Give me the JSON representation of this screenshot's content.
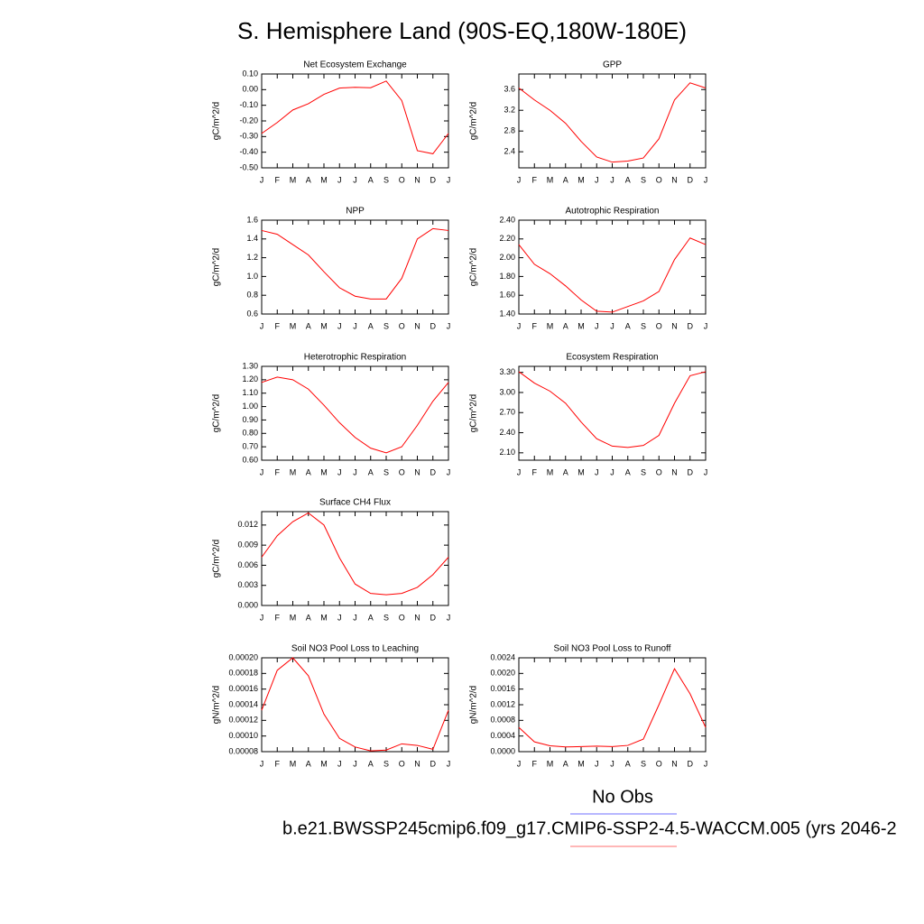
{
  "title": "S. Hemisphere Land (90S-EQ,180W-180E)",
  "legend": [
    {
      "name": "No Obs",
      "color": "#8c8cff"
    },
    {
      "name": "b.e21.BWSSP245cmip6.f09_g17.CMIP6-SSP2-4.5-WACCM.005 (yrs 2046-2",
      "color": "#ff8c8c"
    }
  ],
  "chart_data": [
    {
      "type": "line",
      "title": "Net Ecosystem Exchange",
      "ylabel": "gC/m^2/d",
      "color": "#ff0000",
      "categories": [
        "J",
        "F",
        "M",
        "A",
        "M",
        "J",
        "J",
        "A",
        "S",
        "O",
        "N",
        "D",
        "J"
      ],
      "values": [
        -0.28,
        -0.21,
        -0.13,
        -0.09,
        -0.03,
        0.01,
        0.015,
        0.012,
        0.055,
        -0.07,
        -0.39,
        -0.41,
        -0.28
      ],
      "ylim": [
        -0.5,
        0.1
      ],
      "yticks": [
        {
          "value": 0.1,
          "label": "0.10"
        },
        {
          "value": 0,
          "label": "0.00"
        },
        {
          "value": -0.1,
          "label": "-0.10"
        },
        {
          "value": -0.2,
          "label": "-0.20"
        },
        {
          "value": -0.3,
          "label": "-0.30"
        },
        {
          "value": -0.4,
          "label": "-0.40"
        },
        {
          "value": -0.5,
          "label": "-0.50"
        }
      ]
    },
    {
      "type": "line",
      "title": "GPP",
      "ylabel": "gC/m^2/d",
      "color": "#ff0000",
      "categories": [
        "J",
        "F",
        "M",
        "A",
        "M",
        "J",
        "J",
        "A",
        "S",
        "O",
        "N",
        "D",
        "J"
      ],
      "values": [
        3.63,
        3.4,
        3.2,
        2.95,
        2.6,
        2.3,
        2.2,
        2.22,
        2.28,
        2.65,
        3.4,
        3.73,
        3.63
      ],
      "ylim": [
        2.09,
        3.9
      ],
      "yticks": [
        2.4,
        2.8,
        3.2,
        3.6
      ]
    },
    {
      "type": "line",
      "title": "NPP",
      "ylabel": "gC/m^2/d",
      "color": "#ff0000",
      "categories": [
        "J",
        "F",
        "M",
        "A",
        "M",
        "J",
        "J",
        "A",
        "S",
        "O",
        "N",
        "D",
        "J"
      ],
      "values": [
        1.49,
        1.45,
        1.34,
        1.23,
        1.05,
        0.88,
        0.79,
        0.76,
        0.76,
        0.98,
        1.4,
        1.51,
        1.49
      ],
      "ylim": [
        0.6,
        1.6
      ],
      "yticks": [
        0.6,
        0.8,
        {
          "value": 1,
          "label": "1.0"
        },
        1.2,
        1.4,
        1.6
      ]
    },
    {
      "type": "line",
      "title": "Autotrophic Respiration",
      "ylabel": "gC/m^2/d",
      "color": "#ff0000",
      "categories": [
        "J",
        "F",
        "M",
        "A",
        "M",
        "J",
        "J",
        "A",
        "S",
        "O",
        "N",
        "D",
        "J"
      ],
      "values": [
        2.14,
        1.93,
        1.83,
        1.7,
        1.55,
        1.43,
        1.42,
        1.48,
        1.54,
        1.64,
        1.98,
        2.21,
        2.14
      ],
      "ylim": [
        1.4,
        2.4
      ],
      "yticks": [
        {
          "value": 1.4,
          "label": "1.40"
        },
        {
          "value": 1.6,
          "label": "1.60"
        },
        {
          "value": 1.8,
          "label": "1.80"
        },
        {
          "value": 2,
          "label": "2.00"
        },
        {
          "value": 2.2,
          "label": "2.20"
        },
        {
          "value": 2.4,
          "label": "2.40"
        }
      ]
    },
    {
      "type": "line",
      "title": "Heterotrophic Respiration",
      "ylabel": "gC/m^2/d",
      "color": "#ff0000",
      "categories": [
        "J",
        "F",
        "M",
        "A",
        "M",
        "J",
        "J",
        "A",
        "S",
        "O",
        "N",
        "D",
        "J"
      ],
      "values": [
        1.18,
        1.22,
        1.2,
        1.13,
        1.01,
        0.88,
        0.77,
        0.69,
        0.655,
        0.7,
        0.86,
        1.04,
        1.18
      ],
      "ylim": [
        0.6,
        1.3
      ],
      "yticks": [
        {
          "value": 0.6,
          "label": "0.60"
        },
        {
          "value": 0.7,
          "label": "0.70"
        },
        {
          "value": 0.8,
          "label": "0.80"
        },
        {
          "value": 0.9,
          "label": "0.90"
        },
        {
          "value": 1,
          "label": "1.00"
        },
        {
          "value": 1.1,
          "label": "1.10"
        },
        {
          "value": 1.2,
          "label": "1.20"
        },
        {
          "value": 1.3,
          "label": "1.30"
        }
      ]
    },
    {
      "type": "line",
      "title": "Ecosystem Respiration",
      "ylabel": "gC/m^2/d",
      "color": "#ff0000",
      "categories": [
        "J",
        "F",
        "M",
        "A",
        "M",
        "J",
        "J",
        "A",
        "S",
        "O",
        "N",
        "D",
        "J"
      ],
      "values": [
        3.31,
        3.14,
        3.02,
        2.84,
        2.56,
        2.31,
        2.2,
        2.18,
        2.21,
        2.36,
        2.84,
        3.25,
        3.31
      ],
      "ylim": [
        1.99,
        3.39
      ],
      "yticks": [
        {
          "value": 2.1,
          "label": "2.10"
        },
        {
          "value": 2.4,
          "label": "2.40"
        },
        {
          "value": 2.7,
          "label": "2.70"
        },
        {
          "value": 3,
          "label": "3.00"
        },
        {
          "value": 3.3,
          "label": "3.30"
        }
      ]
    },
    {
      "type": "line",
      "title": "Surface CH4 Flux",
      "ylabel": "gC/m^2/d",
      "color": "#ff0000",
      "categories": [
        "J",
        "F",
        "M",
        "A",
        "M",
        "J",
        "J",
        "A",
        "S",
        "O",
        "N",
        "D",
        "J"
      ],
      "values": [
        0.0072,
        0.0104,
        0.0125,
        0.0138,
        0.012,
        0.0071,
        0.0032,
        0.0018,
        0.0016,
        0.0018,
        0.0027,
        0.0046,
        0.0072
      ],
      "ylim": [
        0,
        0.014
      ],
      "yticks": [
        {
          "value": 0,
          "label": "0.000"
        },
        0.003,
        0.006,
        0.009,
        0.012
      ]
    },
    {
      "type": "line",
      "title": "Soil NO3 Pool Loss to Leaching",
      "ylabel": "gN/m^2/d",
      "color": "#ff0000",
      "categories": [
        "J",
        "F",
        "M",
        "A",
        "M",
        "J",
        "J",
        "A",
        "S",
        "O",
        "N",
        "D",
        "J"
      ],
      "values": [
        0.000133,
        0.000184,
        0.0002,
        0.000177,
        0.000128,
        9.7e-05,
        8.6e-05,
        8.1e-05,
        8.2e-05,
        9e-05,
        8.8e-05,
        8.3e-05,
        0.000133
      ],
      "ylim": [
        8e-05,
        0.0002
      ],
      "yticks": [
        8e-05,
        {
          "value": 0.0001,
          "label": "0.00010"
        },
        0.00012,
        0.00014,
        0.00016,
        0.00018,
        {
          "value": 0.0002,
          "label": "0.00020"
        }
      ]
    },
    {
      "type": "line",
      "title": "Soil NO3 Pool Loss to Runoff",
      "ylabel": "gN/m^2/d",
      "color": "#ff0000",
      "categories": [
        "J",
        "F",
        "M",
        "A",
        "M",
        "J",
        "J",
        "A",
        "S",
        "O",
        "N",
        "D",
        "J"
      ],
      "values": [
        0.00062,
        0.00025,
        0.00015,
        0.00012,
        0.00013,
        0.00014,
        0.00013,
        0.00016,
        0.00032,
        0.0012,
        0.00212,
        0.00148,
        0.00062
      ],
      "ylim": [
        0,
        0.0024
      ],
      "yticks": [
        {
          "value": 0,
          "label": "0.0000"
        },
        0.0004,
        0.0008,
        0.0012,
        0.0016,
        {
          "value": 0.002,
          "label": "0.0020"
        },
        0.0024
      ]
    }
  ]
}
